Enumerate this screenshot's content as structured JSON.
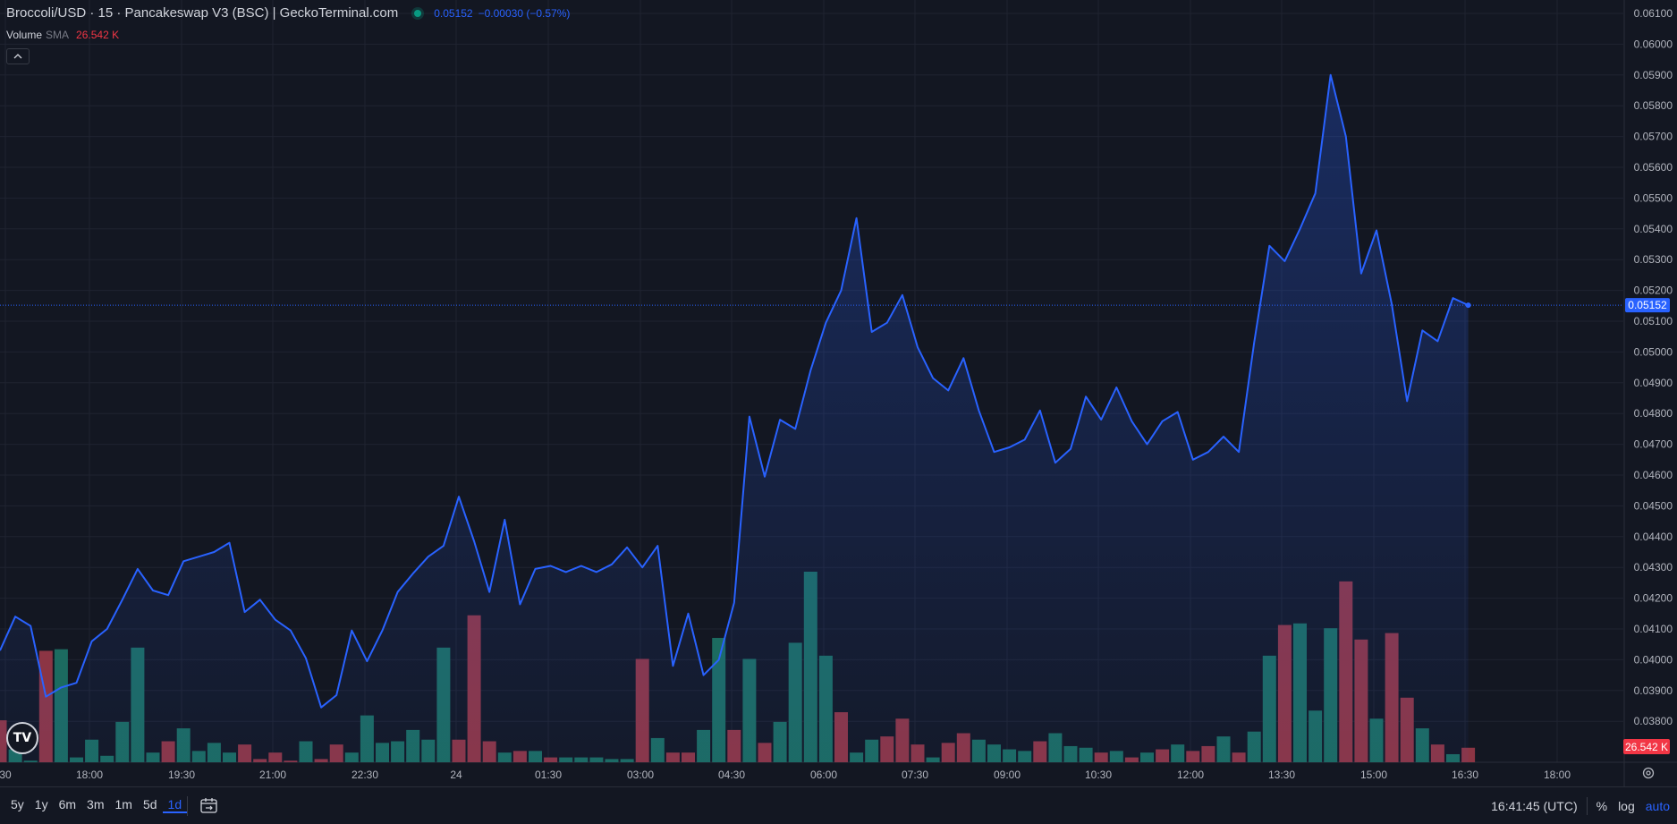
{
  "header": {
    "title": "Broccoli/USD · 15 · Pancakeswap V3 (BSC) | GeckoTerminal.com",
    "price": "0.05152",
    "change": "−0.00030 (−0.57%)",
    "volume_label": "Volume",
    "volume_sma_label": "SMA",
    "volume_value": "26.542 K",
    "collapse_icon": "chevron-up-icon"
  },
  "colors": {
    "background": "#131722",
    "line": "#2962ff",
    "up_volume": "#1c6b60",
    "down_volume": "#8c3544",
    "grid": "#1f2330",
    "text": "#d1d4dc",
    "price_label_bg": "#2962ff",
    "volume_label_bg": "#f23645"
  },
  "chart_data": {
    "type": "line",
    "series": [
      {
        "values": [
          0.0403,
          0.0414,
          0.0411,
          0.0388,
          0.0391,
          0.03925,
          0.0406,
          0.041,
          0.04195,
          0.04295,
          0.04225,
          0.0421,
          0.0432,
          0.04335,
          0.0435,
          0.0438,
          0.04155,
          0.04195,
          0.0413,
          0.04095,
          0.04005,
          0.03845,
          0.03885,
          0.04095,
          0.03995,
          0.04095,
          0.0422,
          0.0428,
          0.04335,
          0.0437,
          0.0453,
          0.04385,
          0.0422,
          0.04455,
          0.0418,
          0.04295,
          0.04305,
          0.04285,
          0.04305,
          0.04285,
          0.0431,
          0.04365,
          0.043,
          0.0437,
          0.0398,
          0.0415,
          0.0395,
          0.04,
          0.04185,
          0.0479,
          0.04595,
          0.0478,
          0.0475,
          0.0494,
          0.05095,
          0.052,
          0.05435,
          0.05065,
          0.05095,
          0.05185,
          0.05015,
          0.04915,
          0.04875,
          0.0498,
          0.0481,
          0.04675,
          0.0469,
          0.04715,
          0.0481,
          0.0464,
          0.04685,
          0.04855,
          0.0478,
          0.04885,
          0.04775,
          0.047,
          0.04775,
          0.04805,
          0.0465,
          0.04675,
          0.04725,
          0.04675,
          0.0503,
          0.05345,
          0.05295,
          0.054,
          0.05515,
          0.059,
          0.057,
          0.05255,
          0.05395,
          0.05155,
          0.0484,
          0.0507,
          0.05035,
          0.05175,
          0.05152
        ]
      },
      {
        "values": [
          26000,
          8000,
          1000,
          69000,
          70000,
          3000,
          14000,
          4000,
          25000,
          71000,
          6000,
          13000,
          21000,
          7000,
          12000,
          6000,
          11000,
          2000,
          6000,
          1000,
          13000,
          2000,
          11000,
          6000,
          29000,
          12000,
          13000,
          20000,
          14000,
          71000,
          14000,
          91000,
          13000,
          6000,
          7000,
          7000,
          3000,
          3000,
          3000,
          3000,
          2000,
          2000,
          64000,
          15000,
          6000,
          6000,
          20000,
          77000,
          20000,
          64000,
          12000,
          25000,
          74000,
          118000,
          66000,
          31000,
          6000,
          14000,
          16000,
          27000,
          11000,
          3000,
          12000,
          18000,
          14000,
          11000,
          8000,
          7000,
          13000,
          18000,
          10000,
          9000,
          6000,
          7000,
          3000,
          6000,
          8000,
          11000,
          7000,
          10000,
          16000,
          6000,
          19000,
          66000,
          85000,
          86000,
          32000,
          83000,
          112000,
          76000,
          27000,
          80000,
          40000,
          21000,
          11000,
          5000,
          9000
        ],
        "colors": [
          "down",
          "up",
          "up",
          "down",
          "up",
          "up",
          "up",
          "up",
          "up",
          "up",
          "up",
          "down",
          "up",
          "up",
          "up",
          "up",
          "down",
          "down",
          "down",
          "down",
          "up",
          "down",
          "down",
          "up",
          "up",
          "up",
          "up",
          "up",
          "up",
          "up",
          "down",
          "down",
          "down",
          "up",
          "down",
          "up",
          "down",
          "up",
          "up",
          "up",
          "up",
          "up",
          "down",
          "up",
          "down",
          "down",
          "up",
          "up",
          "down",
          "up",
          "down",
          "up",
          "up",
          "up",
          "up",
          "down",
          "up",
          "up",
          "down",
          "down",
          "down",
          "up",
          "down",
          "down",
          "up",
          "up",
          "up",
          "up",
          "down",
          "up",
          "up",
          "up",
          "down",
          "up",
          "down",
          "up",
          "down",
          "up",
          "down",
          "down",
          "up",
          "down",
          "up",
          "up",
          "down",
          "up",
          "up",
          "up",
          "down",
          "down",
          "up",
          "down",
          "down",
          "up",
          "down",
          "up",
          "down"
        ]
      }
    ],
    "x_ticks": [
      "30",
      "18:00",
      "19:30",
      "21:00",
      "22:30",
      "24",
      "01:30",
      "03:00",
      "04:30",
      "06:00",
      "07:30",
      "09:00",
      "10:30",
      "12:00",
      "13:30",
      "15:00",
      "16:30",
      "18:00"
    ],
    "y_ticks": [
      "0.06100",
      "0.06000",
      "0.05900",
      "0.05800",
      "0.05700",
      "0.05600",
      "0.05500",
      "0.05400",
      "0.05300",
      "0.05200",
      "0.05100",
      "0.05000",
      "0.04900",
      "0.04800",
      "0.04700",
      "0.04600",
      "0.04500",
      "0.04400",
      "0.04300",
      "0.04200",
      "0.04100",
      "0.04000",
      "0.03900",
      "0.03800"
    ],
    "ylim": [
      0.0376,
      0.0613
    ],
    "current_price_label": "0.05152",
    "volume_label": "26.542 K",
    "grid": true
  },
  "bottom_bar": {
    "ranges": [
      "5y",
      "1y",
      "6m",
      "3m",
      "1m",
      "5d",
      "1d"
    ],
    "active_range": "1d",
    "clock": "16:41:45 (UTC)",
    "percent": "%",
    "log": "log",
    "auto": "auto"
  }
}
